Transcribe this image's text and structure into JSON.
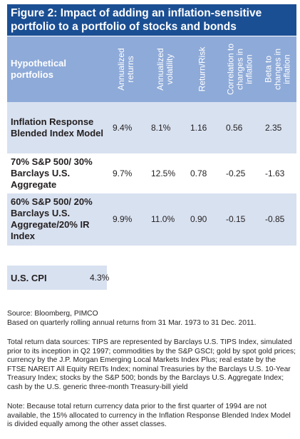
{
  "title": "Figure 2: Impact of adding an inflation-sensitive portfolio to a portfolio of stocks and bonds",
  "table": {
    "header_first": "Hypothetical portfolios",
    "columns": [
      "Annualized returns",
      "Annualized volatility",
      "Return/Risk",
      "Correlation to changes in inflation",
      "Beta to changes in inflation"
    ],
    "rows": [
      {
        "name": "Inflation Response Blended Index Model",
        "values": [
          "9.4%",
          "8.1%",
          "1.16",
          "0.56",
          "2.35"
        ]
      },
      {
        "name": "70% S&P 500/ 30% Barclays U.S. Aggregate",
        "values": [
          "9.7%",
          "12.5%",
          "0.78",
          "-0.25",
          "-1.63"
        ]
      },
      {
        "name": "60% S&P 500/ 20% Barclays U.S. Aggregate/20% IR Index",
        "values": [
          "9.9%",
          "11.0%",
          "0.90",
          "-0.15",
          "-0.85"
        ]
      }
    ]
  },
  "cpi": {
    "name": "U.S. CPI",
    "value": "4.3%"
  },
  "notes": {
    "source": "Source: Bloomberg, PIMCO",
    "basis": "Based on quarterly rolling annual returns from 31 Mar. 1973 to 31 Dec. 2011.",
    "data_sources": "Total return data sources: TIPS are represented by Barclays U.S. TIPS Index, simulated prior to its inception in Q2 1997; commodities by the S&P GSCI; gold by spot gold prices; currency by the J.P. Morgan Emerging Local Markets Index Plus; real estate by the FTSE NAREIT All Equity REITs Index; nominal Treasuries by the Barclays U.S. 10-Year Treasury Index; stocks by the S&P 500; bonds by the Barclays U.S. Aggregate Index; cash by the U.S. generic three-month Treasury-bill yield",
    "note": "Note: Because total return currency data prior to the first quarter of 1994 are not available, the 15% allocated to currency in the Inflation Response Blended Index Model is divided equally among the other asset classes."
  }
}
